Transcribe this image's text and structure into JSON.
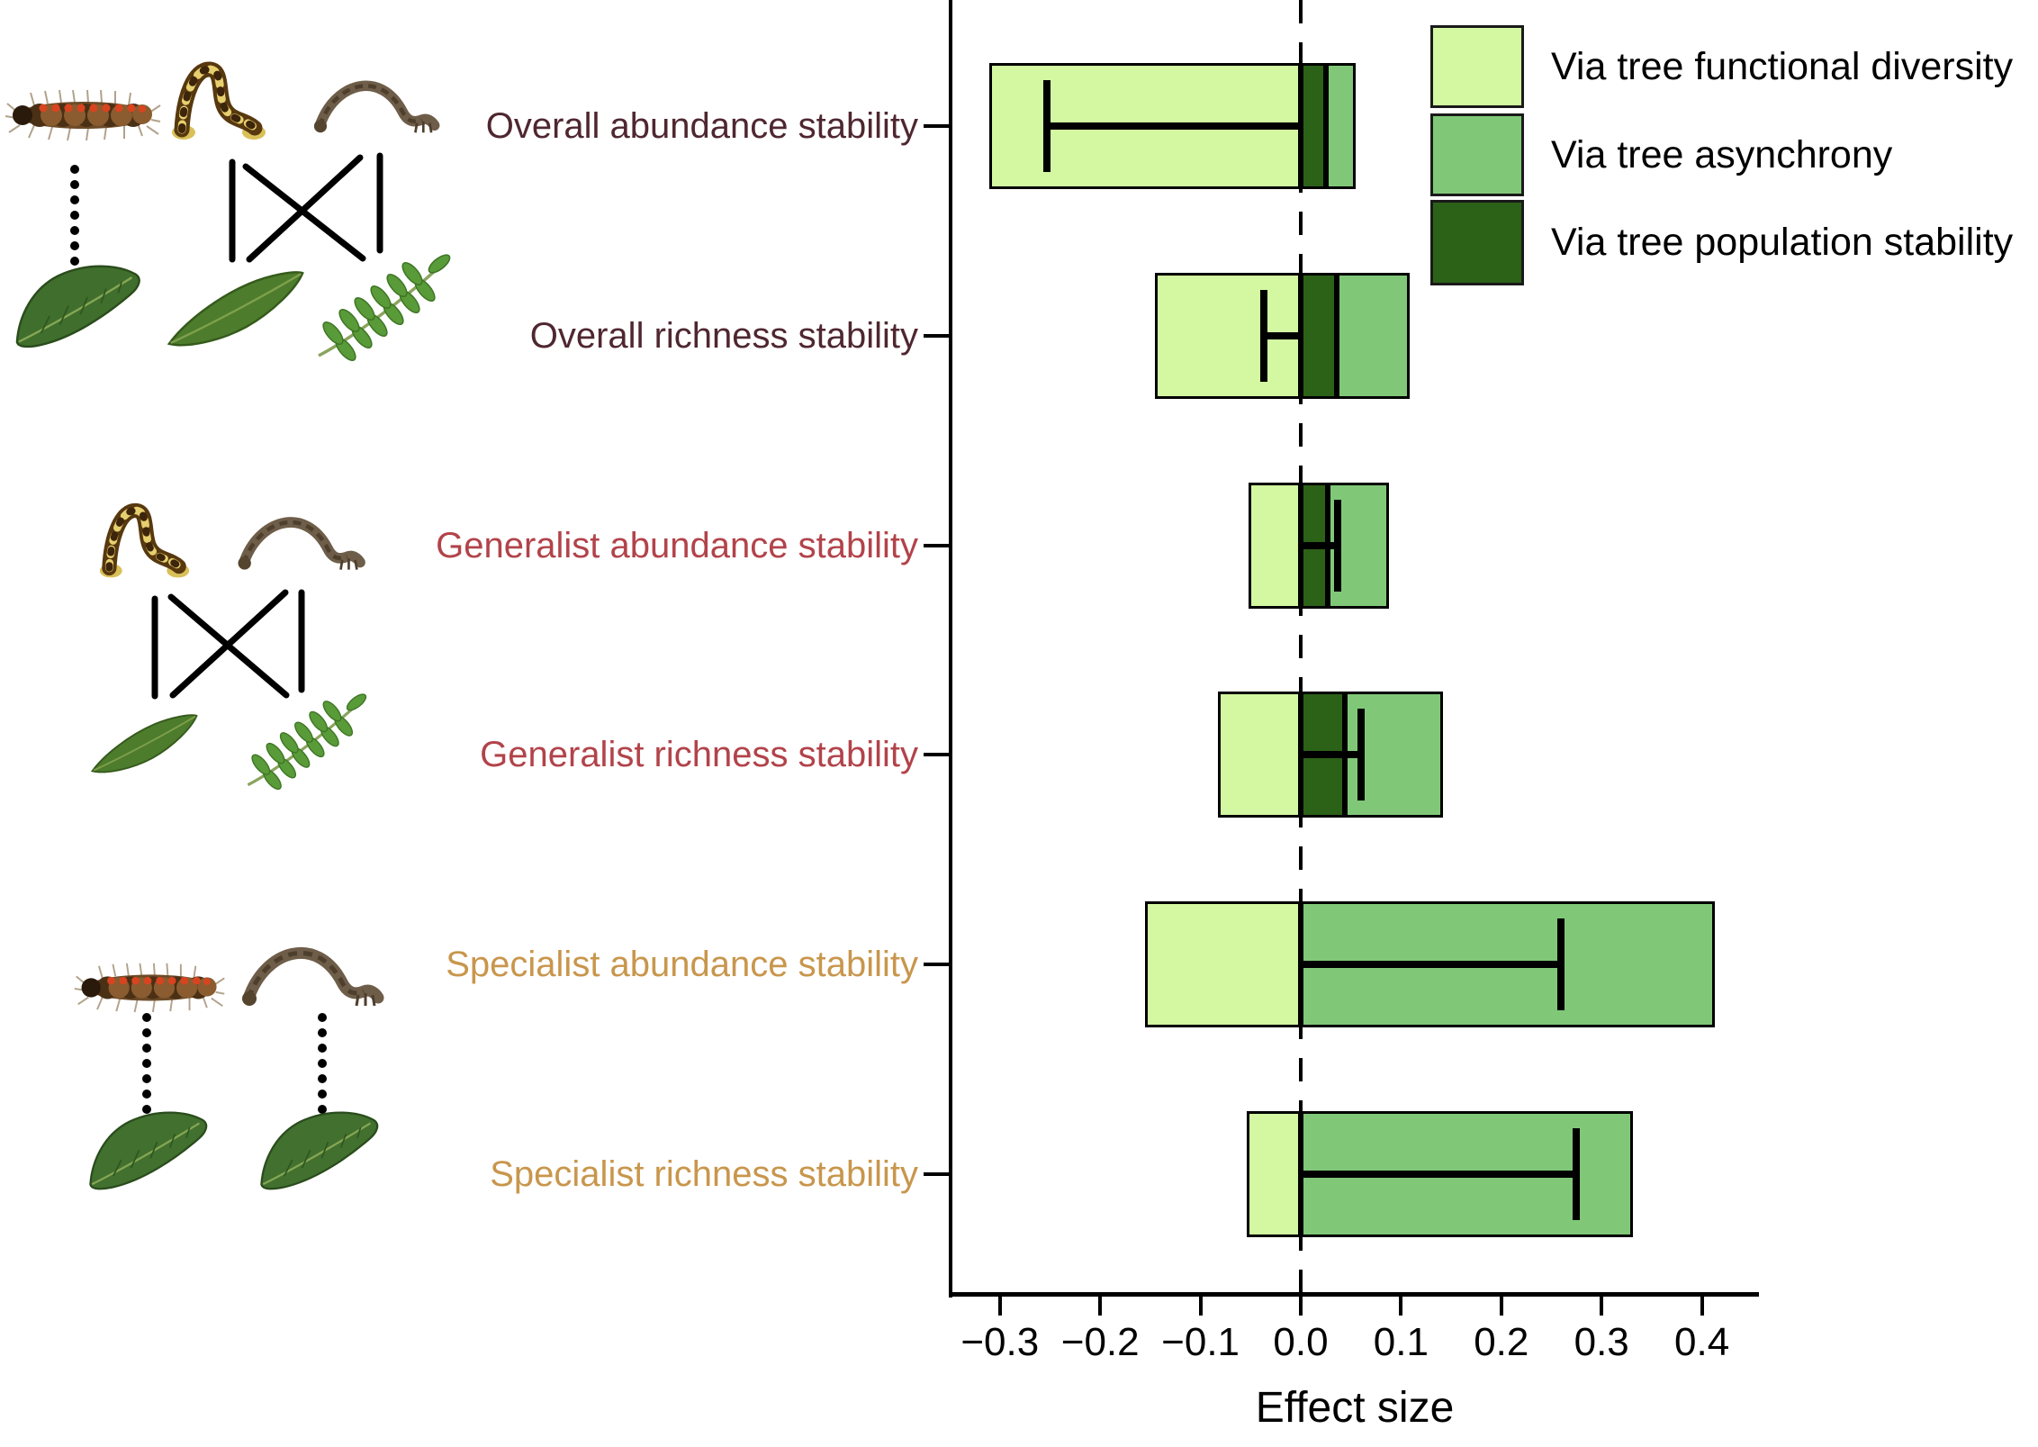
{
  "figure": {
    "background": "#ffffff",
    "x_axis_title": "Effect size"
  },
  "axis": {
    "label": "Effect size",
    "ticks": [
      {
        "label": "−0.3",
        "value": -0.3
      },
      {
        "label": "−0.2",
        "value": -0.2
      },
      {
        "label": "−0.1",
        "value": -0.1
      },
      {
        "label": "0.0",
        "value": 0.0
      },
      {
        "label": "0.1",
        "value": 0.1
      },
      {
        "label": "0.2",
        "value": 0.2
      },
      {
        "label": "0.3",
        "value": 0.3
      },
      {
        "label": "0.4",
        "value": 0.4
      }
    ]
  },
  "legend": {
    "position": "top-right",
    "items": [
      {
        "key": "functional_diversity",
        "label": "Via tree functional diversity"
      },
      {
        "key": "asynchrony",
        "label": "Via tree asynchrony"
      },
      {
        "key": "population_stability",
        "label": "Via tree population stability"
      }
    ]
  },
  "colors": {
    "functional_diversity": "#d3f8a1",
    "asynchrony": "#80c878",
    "population_stability": "#2c6118",
    "overall_label": "#4f2730",
    "generalist_label": "#b2434a",
    "specialist_label": "#c8964c",
    "axis": "#000000"
  },
  "chart_data": {
    "type": "bar",
    "orientation": "horizontal",
    "title": "",
    "xlabel": "Effect size",
    "ylabel": "",
    "xlim": [
      -0.35,
      0.46
    ],
    "grid": false,
    "zero_reference_line": "dashed",
    "series_labels": {
      "functional_diversity": "Via tree functional diversity",
      "asynchrony": "Via tree asynchrony",
      "population_stability": "Via tree population stability"
    },
    "categories": [
      "Overall abundance stability",
      "Overall richness stability",
      "Generalist abundance stability",
      "Generalist richness stability",
      "Specialist abundance stability",
      "Specialist richness stability"
    ],
    "rows": [
      {
        "label": "Overall abundance stability",
        "group": "overall",
        "segments": [
          {
            "series": "functional_diversity",
            "from": -0.311,
            "to": 0
          },
          {
            "series": "population_stability",
            "from": 0,
            "to": 0.025
          },
          {
            "series": "asynchrony",
            "from": 0.025,
            "to": 0.055
          }
        ],
        "error_bar": {
          "from": -0.253,
          "to": 0,
          "cap": "left"
        }
      },
      {
        "label": "Overall richness stability",
        "group": "overall",
        "segments": [
          {
            "series": "functional_diversity",
            "from": -0.145,
            "to": 0
          },
          {
            "series": "population_stability",
            "from": 0,
            "to": 0.036
          },
          {
            "series": "asynchrony",
            "from": 0.036,
            "to": 0.109
          }
        ],
        "error_bar": {
          "from": -0.037,
          "to": 0,
          "cap": "left"
        }
      },
      {
        "label": "Generalist abundance stability",
        "group": "generalist",
        "segments": [
          {
            "series": "functional_diversity",
            "from": -0.052,
            "to": 0
          },
          {
            "series": "population_stability",
            "from": 0,
            "to": 0.027
          },
          {
            "series": "asynchrony",
            "from": 0.027,
            "to": 0.088
          }
        ],
        "error_bar": {
          "from": 0,
          "to": 0.037,
          "cap": "right"
        }
      },
      {
        "label": "Generalist richness stability",
        "group": "generalist",
        "segments": [
          {
            "series": "functional_diversity",
            "from": -0.083,
            "to": 0
          },
          {
            "series": "population_stability",
            "from": 0,
            "to": 0.044
          },
          {
            "series": "asynchrony",
            "from": 0.044,
            "to": 0.142
          }
        ],
        "error_bar": {
          "from": 0,
          "to": 0.06,
          "cap": "right"
        }
      },
      {
        "label": "Specialist abundance stability",
        "group": "specialist",
        "segments": [
          {
            "series": "functional_diversity",
            "from": -0.155,
            "to": 0
          },
          {
            "series": "asynchrony",
            "from": 0,
            "to": 0.413
          }
        ],
        "error_bar": {
          "from": 0,
          "to": 0.259,
          "cap": "right"
        }
      },
      {
        "label": "Specialist richness stability",
        "group": "specialist",
        "segments": [
          {
            "series": "functional_diversity",
            "from": -0.054,
            "to": 0
          },
          {
            "series": "asynchrony",
            "from": 0,
            "to": 0.331
          }
        ],
        "error_bar": {
          "from": 0,
          "to": 0.275,
          "cap": "right"
        }
      }
    ]
  },
  "illustrations": {
    "overall_network": {
      "caterpillars": [
        "fuzzy-caterpillar",
        "patterned-caterpillar",
        "looper-caterpillar"
      ],
      "leaves": [
        "broad-leaf",
        "long-leaf",
        "compound-leaf"
      ],
      "links": "dotted line plus crossed many-to-many links"
    },
    "generalist_network": {
      "caterpillars": [
        "patterned-caterpillar",
        "looper-caterpillar"
      ],
      "leaves": [
        "long-leaf",
        "compound-leaf"
      ],
      "links": "crossed many-to-many links"
    },
    "specialist_network": {
      "caterpillars": [
        "fuzzy-caterpillar",
        "looper-caterpillar"
      ],
      "leaves": [
        "broad-leaf",
        "broad-leaf"
      ],
      "links": "one-to-one dotted links"
    }
  }
}
